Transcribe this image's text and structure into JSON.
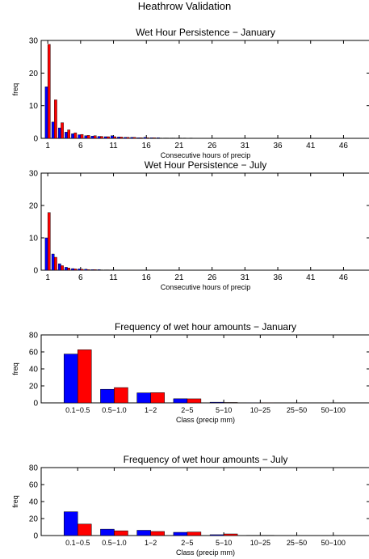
{
  "figure": {
    "suptitle": "Heathrow Validation"
  },
  "chart_data": [
    {
      "type": "bar",
      "title": "Wet Hour Persistence − January",
      "xlabel": "Consecutive hours of precip",
      "ylabel": "freq",
      "ylim": [
        0,
        30
      ],
      "xlim": [
        0,
        50
      ],
      "yticks": [
        0,
        10,
        20,
        30
      ],
      "xticks": [
        1,
        6,
        11,
        16,
        21,
        26,
        31,
        36,
        41,
        46
      ],
      "x": [
        1,
        2,
        3,
        4,
        5,
        6,
        7,
        8,
        9,
        10,
        11,
        12,
        13,
        14,
        15,
        16,
        17,
        18,
        19,
        20,
        21,
        22,
        23,
        24,
        25
      ],
      "series": [
        {
          "values": [
            15.8,
            5.0,
            3.2,
            1.9,
            1.4,
            1.1,
            0.8,
            0.7,
            0.6,
            0.5,
            0.8,
            0.4,
            0.3,
            0.3,
            0.2,
            0.3,
            0.2,
            0.2,
            0.1,
            0.1,
            0.1,
            0.1,
            0.1,
            0.05,
            0.05
          ]
        },
        {
          "values": [
            28.8,
            11.8,
            4.8,
            2.6,
            1.7,
            1.2,
            0.9,
            0.8,
            0.6,
            0.5,
            0.5,
            0.4,
            0.3,
            0.3,
            0.2,
            0.2,
            0.2,
            0.1,
            0.1,
            0.1,
            0.1,
            0.05,
            0.05,
            0.05,
            0.05
          ]
        }
      ],
      "colors": [
        "#0000ff",
        "#ff0000"
      ],
      "grid": false
    },
    {
      "type": "bar",
      "title": "Wet Hour Persistence − July",
      "xlabel": "Consecutive hours of precip",
      "ylabel": "",
      "ylim": [
        0,
        30
      ],
      "xlim": [
        0,
        50
      ],
      "yticks": [
        0,
        10,
        20,
        30
      ],
      "xticks": [
        1,
        6,
        11,
        16,
        21,
        26,
        31,
        36,
        41,
        46
      ],
      "x": [
        1,
        2,
        3,
        4,
        5,
        6,
        7,
        8,
        9,
        10,
        11,
        12,
        13,
        14,
        15
      ],
      "series": [
        {
          "values": [
            10.0,
            5.0,
            2.0,
            0.9,
            0.5,
            0.4,
            0.3,
            0.2,
            0.2,
            0.1,
            0.1,
            0.05,
            0.05,
            0.05,
            0.05
          ]
        },
        {
          "values": [
            17.8,
            4.0,
            1.4,
            0.7,
            0.4,
            0.3,
            0.2,
            0.2,
            0.1,
            0.1,
            0.05,
            0.05,
            0.05,
            0.05,
            0.05
          ]
        }
      ],
      "colors": [
        "#0000ff",
        "#ff0000"
      ],
      "grid": false
    },
    {
      "type": "bar",
      "title": "Frequency of wet hour amounts − January",
      "xlabel": "Class (precip mm)",
      "ylabel": "freq",
      "ylim": [
        0,
        80
      ],
      "yticks": [
        0,
        20,
        40,
        60,
        80
      ],
      "categories": [
        "0.1−0.5",
        "0.5−1.0",
        "1−2",
        "2−5",
        "5−10",
        "10−25",
        "25−50",
        "50−100"
      ],
      "series": [
        {
          "values": [
            57.5,
            16.0,
            11.8,
            4.9,
            0.8,
            0.1,
            0.0,
            0.0
          ]
        },
        {
          "values": [
            62.5,
            18.0,
            12.0,
            4.8,
            0.5,
            0.1,
            0.0,
            0.0
          ]
        }
      ],
      "colors": [
        "#0000ff",
        "#ff0000"
      ],
      "grid": false
    },
    {
      "type": "bar",
      "title": "Frequency of wet hour amounts − July",
      "xlabel": "Class (precip mm)",
      "ylabel": "freq",
      "ylim": [
        0,
        80
      ],
      "yticks": [
        0,
        20,
        40,
        60,
        80
      ],
      "categories": [
        "0.1−0.5",
        "0.5−1.0",
        "1−2",
        "2−5",
        "5−10",
        "10−25",
        "25−50",
        "50−100"
      ],
      "series": [
        {
          "values": [
            28.0,
            7.5,
            6.2,
            3.8,
            1.0,
            0.3,
            0.0,
            0.0
          ]
        },
        {
          "values": [
            13.5,
            5.6,
            4.8,
            4.2,
            1.9,
            0.3,
            0.0,
            0.0
          ]
        }
      ],
      "colors": [
        "#0000ff",
        "#ff0000"
      ],
      "grid": false
    }
  ]
}
